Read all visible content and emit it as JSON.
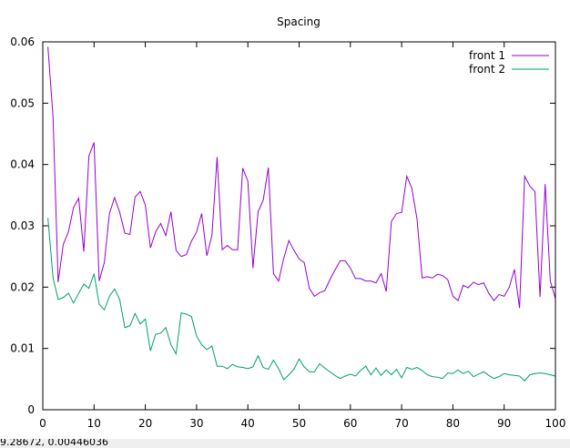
{
  "status_readout": "9.28672,  0.00446036",
  "chart_data": {
    "type": "line",
    "title": "Spacing",
    "xlabel": "",
    "ylabel": "",
    "xlim": [
      0,
      100
    ],
    "ylim": [
      0,
      0.06
    ],
    "xticks": [
      0,
      10,
      20,
      30,
      40,
      50,
      60,
      70,
      80,
      90,
      100
    ],
    "xtick_labels": [
      "0",
      "10",
      "20",
      "30",
      "40",
      "50",
      "60",
      "70",
      "80",
      "90",
      "100"
    ],
    "yticks": [
      0,
      0.01,
      0.02,
      0.03,
      0.04,
      0.05,
      0.06
    ],
    "ytick_labels": [
      "0",
      "0.01",
      "0.02",
      "0.03",
      "0.04",
      "0.05",
      "0.06"
    ],
    "grid": false,
    "legend": "top-right",
    "series": [
      {
        "name": "front 1",
        "color": "#9400d3",
        "x": [
          1,
          2,
          3,
          4,
          5,
          6,
          7,
          8,
          9,
          10,
          11,
          12,
          13,
          14,
          15,
          16,
          17,
          18,
          19,
          20,
          21,
          22,
          23,
          24,
          25,
          26,
          27,
          28,
          29,
          30,
          31,
          32,
          33,
          34,
          35,
          36,
          37,
          38,
          39,
          40,
          41,
          42,
          43,
          44,
          45,
          46,
          47,
          48,
          49,
          50,
          51,
          52,
          53,
          54,
          55,
          56,
          57,
          58,
          59,
          60,
          61,
          62,
          63,
          64,
          65,
          66,
          67,
          68,
          69,
          70,
          71,
          72,
          73,
          74,
          75,
          76,
          77,
          78,
          79,
          80,
          81,
          82,
          83,
          84,
          85,
          86,
          87,
          88,
          89,
          90,
          91,
          92,
          93,
          94,
          95,
          96,
          97,
          98,
          99,
          100
        ],
        "values": [
          0.0592,
          0.0478,
          0.0208,
          0.027,
          0.029,
          0.033,
          0.0345,
          0.0258,
          0.0414,
          0.0436,
          0.021,
          0.024,
          0.032,
          0.0346,
          0.0322,
          0.0288,
          0.0286,
          0.0347,
          0.0356,
          0.0334,
          0.0264,
          0.029,
          0.0304,
          0.0284,
          0.0323,
          0.026,
          0.025,
          0.0253,
          0.0275,
          0.029,
          0.032,
          0.0251,
          0.0285,
          0.0412,
          0.0261,
          0.0268,
          0.0261,
          0.0261,
          0.0394,
          0.0373,
          0.0231,
          0.0323,
          0.0342,
          0.0395,
          0.0222,
          0.021,
          0.0247,
          0.0276,
          0.026,
          0.0246,
          0.024,
          0.0198,
          0.0185,
          0.0191,
          0.0194,
          0.0212,
          0.0228,
          0.0243,
          0.0243,
          0.0231,
          0.0214,
          0.0214,
          0.021,
          0.021,
          0.0207,
          0.0222,
          0.0193,
          0.0307,
          0.032,
          0.0322,
          0.0381,
          0.0361,
          0.0311,
          0.0215,
          0.0217,
          0.0215,
          0.0221,
          0.0219,
          0.0212,
          0.0185,
          0.0178,
          0.0203,
          0.0199,
          0.0208,
          0.0204,
          0.0207,
          0.019,
          0.0178,
          0.0188,
          0.0185,
          0.02,
          0.0229,
          0.0166,
          0.0381,
          0.0365,
          0.0356,
          0.0184,
          0.0368,
          0.021,
          0.0181
        ]
      },
      {
        "name": "front 2",
        "color": "#009e73",
        "x": [
          1,
          2,
          3,
          4,
          5,
          6,
          7,
          8,
          9,
          10,
          11,
          12,
          13,
          14,
          15,
          16,
          17,
          18,
          19,
          20,
          21,
          22,
          23,
          24,
          25,
          26,
          27,
          28,
          29,
          30,
          31,
          32,
          33,
          34,
          35,
          36,
          37,
          38,
          39,
          40,
          41,
          42,
          43,
          44,
          45,
          46,
          47,
          48,
          49,
          50,
          51,
          52,
          53,
          54,
          55,
          56,
          57,
          58,
          59,
          60,
          61,
          62,
          63,
          64,
          65,
          66,
          67,
          68,
          69,
          70,
          71,
          72,
          73,
          74,
          75,
          76,
          77,
          78,
          79,
          80,
          81,
          82,
          83,
          84,
          85,
          86,
          87,
          88,
          89,
          90,
          91,
          92,
          93,
          94,
          95,
          96,
          97,
          98,
          99,
          100
        ],
        "values": [
          0.0313,
          0.0215,
          0.018,
          0.0183,
          0.019,
          0.0174,
          0.019,
          0.0205,
          0.0198,
          0.0222,
          0.0172,
          0.0163,
          0.0185,
          0.0197,
          0.018,
          0.0134,
          0.0137,
          0.0157,
          0.014,
          0.0148,
          0.0096,
          0.0123,
          0.0125,
          0.0134,
          0.0106,
          0.0091,
          0.0158,
          0.0156,
          0.0152,
          0.012,
          0.0106,
          0.0098,
          0.0104,
          0.0071,
          0.0071,
          0.0067,
          0.0074,
          0.007,
          0.0069,
          0.0067,
          0.007,
          0.0088,
          0.0069,
          0.0066,
          0.0081,
          0.0067,
          0.0049,
          0.0057,
          0.0066,
          0.0083,
          0.007,
          0.0062,
          0.0062,
          0.0075,
          0.0068,
          0.0062,
          0.0056,
          0.0051,
          0.0055,
          0.0058,
          0.0055,
          0.0064,
          0.0071,
          0.0057,
          0.0068,
          0.0056,
          0.0065,
          0.0057,
          0.0066,
          0.0052,
          0.0069,
          0.0066,
          0.0069,
          0.0064,
          0.0057,
          0.0054,
          0.0053,
          0.0051,
          0.006,
          0.0059,
          0.0065,
          0.0059,
          0.0063,
          0.0054,
          0.0058,
          0.0062,
          0.0056,
          0.0051,
          0.0054,
          0.0059,
          0.0057,
          0.0056,
          0.0055,
          0.0047,
          0.0057,
          0.0059,
          0.006,
          0.0059,
          0.0057,
          0.0055
        ]
      }
    ]
  }
}
